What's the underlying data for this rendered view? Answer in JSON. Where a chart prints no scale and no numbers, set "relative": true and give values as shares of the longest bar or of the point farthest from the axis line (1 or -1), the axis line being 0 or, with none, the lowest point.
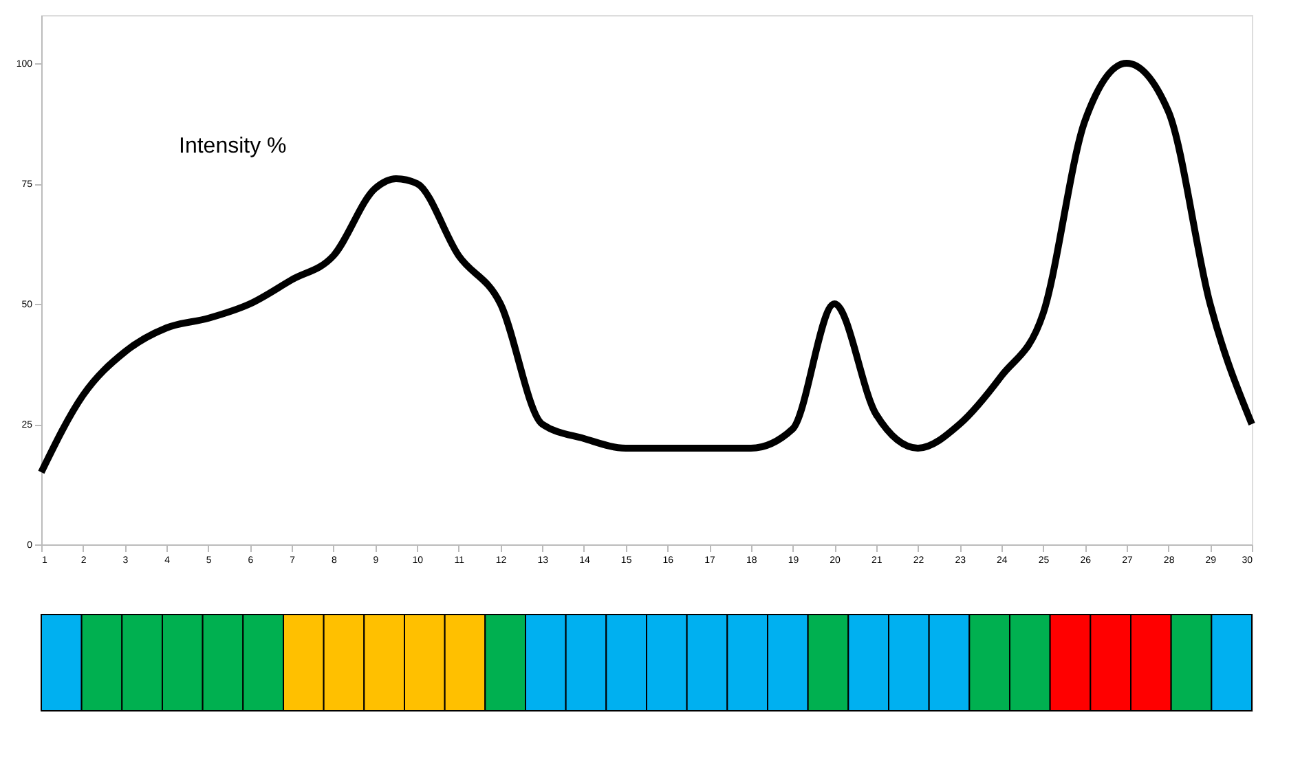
{
  "chart_data": [
    {
      "type": "line",
      "annotations": [
        "Intensity %"
      ],
      "series": [
        {
          "color": "#000000",
          "x": [
            1,
            2,
            3,
            4,
            5,
            6,
            7,
            8,
            9,
            9.5,
            10,
            11,
            12,
            13,
            14,
            15,
            16,
            17,
            18,
            19,
            20,
            21,
            22,
            23,
            24,
            25,
            26,
            27,
            28,
            29,
            30
          ],
          "values": [
            15,
            31,
            40,
            45,
            47,
            50,
            55,
            60,
            74,
            76,
            75,
            60,
            50,
            25,
            22,
            20,
            20,
            20,
            20,
            24,
            50,
            27,
            20,
            25,
            35,
            48,
            88,
            100,
            90,
            50,
            25
          ]
        }
      ],
      "xlim": [
        1,
        30
      ],
      "xticks": [
        1,
        2,
        3,
        4,
        5,
        6,
        7,
        8,
        9,
        10,
        11,
        12,
        13,
        14,
        15,
        16,
        17,
        18,
        19,
        20,
        21,
        22,
        23,
        24,
        25,
        26,
        27,
        28,
        29,
        30
      ],
      "ylim": [
        0,
        110
      ],
      "yticks": [
        0,
        25,
        50,
        75,
        100
      ],
      "grid": false,
      "marker": "none",
      "line_style": "solid"
    },
    {
      "type": "bar",
      "relative": true,
      "categories": [
        null,
        null,
        null,
        null,
        null,
        null,
        null,
        null,
        null,
        null,
        null,
        null,
        null,
        null,
        null,
        null,
        null,
        null,
        null,
        null,
        null,
        null,
        null,
        null,
        null,
        null,
        null,
        null,
        null,
        null
      ],
      "values": [
        1,
        1,
        1,
        1,
        1,
        1,
        1,
        1,
        1,
        1,
        1,
        1,
        1,
        1,
        1,
        1,
        1,
        1,
        1,
        1,
        1,
        1,
        1,
        1,
        1,
        1,
        1,
        1,
        1,
        1
      ],
      "colors": [
        "#00b0f0",
        "#00b050",
        "#00b050",
        "#00b050",
        "#00b050",
        "#00b050",
        "#ffc000",
        "#ffc000",
        "#ffc000",
        "#ffc000",
        "#ffc000",
        "#00b050",
        "#00b0f0",
        "#00b0f0",
        "#00b0f0",
        "#00b0f0",
        "#00b0f0",
        "#00b0f0",
        "#00b0f0",
        "#00b050",
        "#00b0f0",
        "#00b0f0",
        "#00b0f0",
        "#00b050",
        "#00b050",
        "#ff0000",
        "#ff0000",
        "#ff0000",
        "#00b050",
        "#00b0f0"
      ]
    }
  ]
}
